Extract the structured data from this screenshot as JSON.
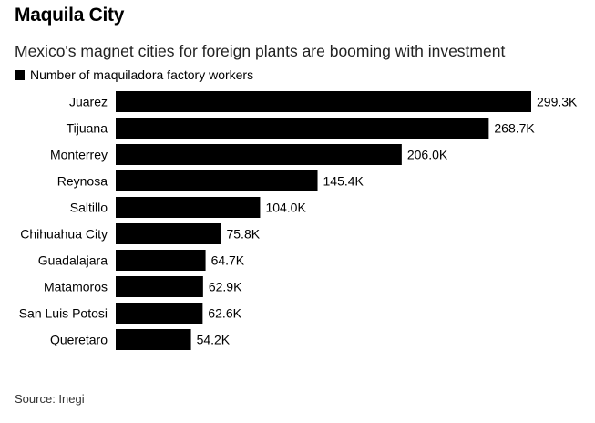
{
  "chart_data": {
    "type": "bar",
    "orientation": "horizontal",
    "title": "Maquila City",
    "subtitle": "Mexico's magnet cities for foreign plants are booming with investment",
    "legend": [
      {
        "label": "Number of maquiladora factory workers",
        "color": "#000000"
      }
    ],
    "categories": [
      "Juarez",
      "Tijuana",
      "Monterrey",
      "Reynosa",
      "Saltillo",
      "Chihuahua City",
      "Guadalajara",
      "Matamoros",
      "San Luis Potosi",
      "Queretaro"
    ],
    "values": [
      299.3,
      268.7,
      206.0,
      145.4,
      104.0,
      75.8,
      64.7,
      62.9,
      62.6,
      54.2
    ],
    "value_labels": [
      "299.3K",
      "268.7K",
      "206.0K",
      "145.4K",
      "104.0K",
      "75.8K",
      "64.7K",
      "62.9K",
      "62.6K",
      "54.2K"
    ],
    "grid": false,
    "legend_position": "top-left",
    "source": "Source: Inegi"
  }
}
